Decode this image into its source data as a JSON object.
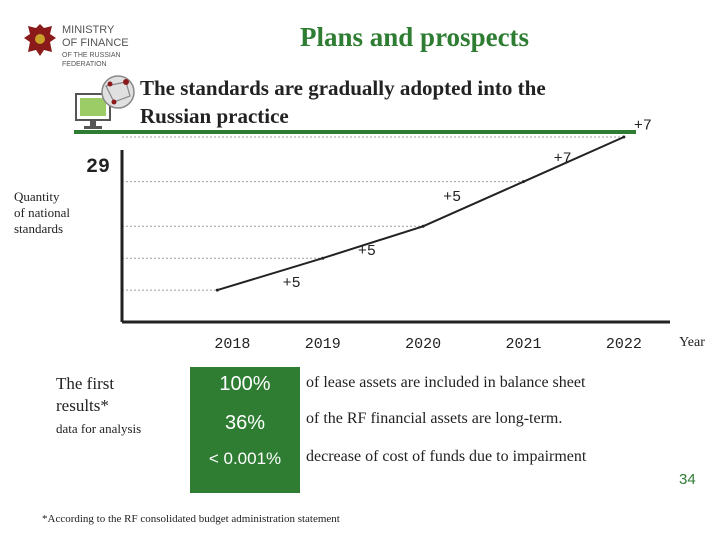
{
  "header": {
    "ministry_line1": "MINISTRY",
    "ministry_line2": "OF FINANCE",
    "ministry_sub": "OF THE RUSSIAN FEDERATION",
    "title": "Plans and prospects",
    "subtitle_line1": "The standards are gradually adopted into the",
    "subtitle_line2": "Russian practice"
  },
  "colors": {
    "accent": "#2e7d32",
    "gridline": "#9e9e9e"
  },
  "icons": {
    "emblem": "coat-of-arms-icon",
    "monitor": "network-monitor-icon"
  },
  "chart_data": {
    "type": "line",
    "categories": [
      "2018",
      "2019",
      "2020",
      "2021",
      "2022"
    ],
    "xlabel": "Year",
    "ylabel": "Quantity of national standards",
    "ylabel_lines": [
      "Quantity",
      "of national",
      "standards"
    ],
    "ymax_label": "29",
    "ymax": 29,
    "ylim": [
      0,
      29
    ],
    "points": [
      {
        "x": 2017.95,
        "y": 5
      },
      {
        "x": 2019.0,
        "y": 10
      },
      {
        "x": 2020.0,
        "y": 15
      },
      {
        "x": 2021.0,
        "y": 22
      },
      {
        "x": 2022.0,
        "y": 29
      }
    ],
    "annotations": [
      {
        "text": "+5",
        "x": 2018.6,
        "y": 5.5
      },
      {
        "text": "+5",
        "x": 2019.35,
        "y": 10.5
      },
      {
        "text": "+5",
        "x": 2020.2,
        "y": 19
      },
      {
        "text": "+7",
        "x": 2021.3,
        "y": 25
      },
      {
        "text": "+7",
        "x": 2022.1,
        "y": 30.2
      }
    ]
  },
  "results": {
    "heading": "The first results*",
    "heading_line1": "The first",
    "heading_line2": "results*",
    "subheading": "data for analysis",
    "items": [
      {
        "value": "100%",
        "text": "of lease assets are included in balance sheet"
      },
      {
        "value": "36%",
        "text": "of the RF financial assets are long-term."
      },
      {
        "value": "< 0.001%",
        "text": "decrease of cost of funds due to impairment"
      }
    ]
  },
  "footnote": "*According to the RF consolidated budget administration statement",
  "page_number": "34"
}
